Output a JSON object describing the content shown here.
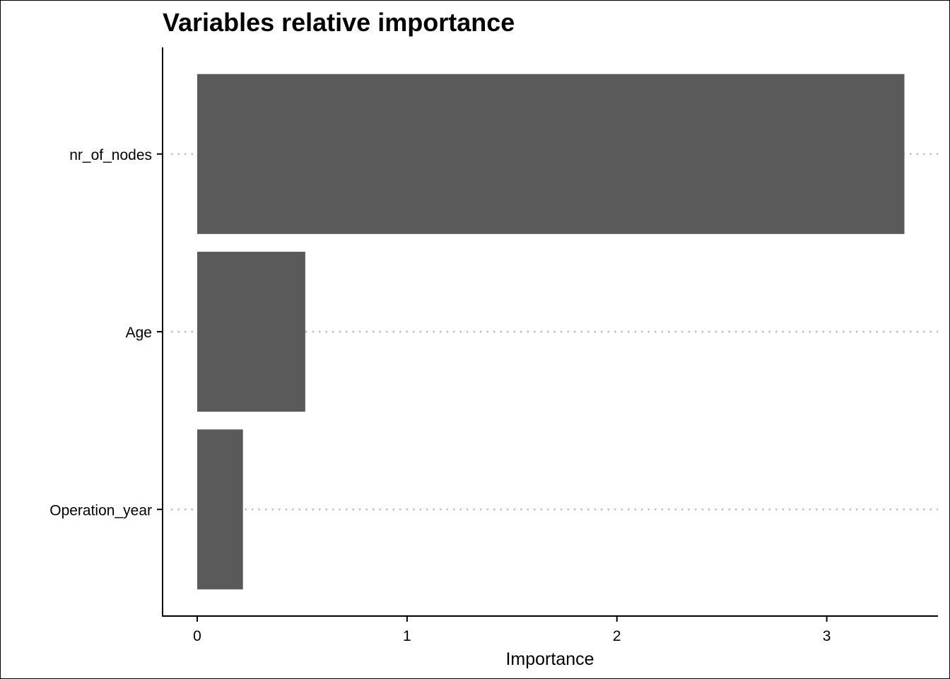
{
  "chart_data": {
    "type": "bar",
    "orientation": "horizontal",
    "title": "Variables relative importance",
    "xlabel": "Importance",
    "ylabel": "",
    "categories": [
      "nr_of_nodes",
      "Age",
      "Operation_year"
    ],
    "values": [
      3.37,
      0.515,
      0.218
    ],
    "xlim": [
      -0.165,
      3.53
    ],
    "xticks": [
      "0",
      "1",
      "2",
      "3"
    ],
    "grid": "dotted horizontal lines at categories",
    "legend": "none",
    "bar_color": "#5a5a5a",
    "grid_color": "#bebebe"
  }
}
